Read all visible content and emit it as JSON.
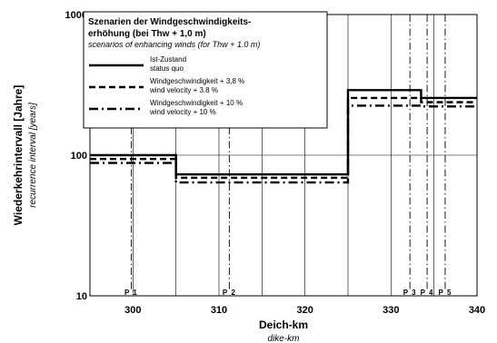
{
  "chart_data": {
    "type": "line",
    "xlabel": "Deich-km",
    "xlabel_sub": "dike-km",
    "ylabel": "Wiederkehrintervall  [Jahre]",
    "ylabel_sub": "recurrence interval  [years]",
    "xlim": [
      295,
      340
    ],
    "ylim": [
      10,
      1000
    ],
    "y_scale": "log",
    "grid": true,
    "x_ticks": [
      "300",
      "310",
      "320",
      "330",
      "340"
    ],
    "y_ticks": [
      "10",
      "100",
      "1000"
    ],
    "legend": {
      "placement": "top-left",
      "title_line1": "Szenarien der Windgeschwindigkeits-",
      "title_line2": "erhöhung (bei Thw + 1,0 m)",
      "subtitle": "scenarios of enhancing winds (for Thw + 1.0 m)"
    },
    "series": [
      {
        "name": "Ist-Zustand",
        "name_en": "status quo",
        "style": "solid",
        "x": [
          295,
          305,
          305,
          325,
          325,
          333.5,
          333.5,
          340
        ],
        "y": [
          100,
          100,
          73,
          73,
          290,
          290,
          255,
          255
        ]
      },
      {
        "name": "Windgeschwindigkeit + 3,8 %",
        "name_en": "wind velocity + 3.8 %",
        "style": "dashed",
        "x": [
          295,
          305,
          305,
          325,
          325,
          333.5,
          333.5,
          340
        ],
        "y": [
          94,
          94,
          69,
          69,
          255,
          255,
          238,
          238
        ]
      },
      {
        "name": "Windgeschwindigkeit + 10 %",
        "name_en": "wind velocity + 10 %",
        "style": "dashdot",
        "x": [
          295,
          305,
          305,
          325,
          325,
          333.5,
          333.5,
          340
        ],
        "y": [
          88,
          88,
          64,
          64,
          225,
          225,
          222,
          222
        ]
      }
    ],
    "profiles": [
      {
        "label": "P 1",
        "x": 299.8
      },
      {
        "label": "P 2",
        "x": 311.2
      },
      {
        "label": "P 3",
        "x": 332.2
      },
      {
        "label": "P 4",
        "x": 334.2
      },
      {
        "label": "P 5",
        "x": 336.3
      }
    ]
  }
}
